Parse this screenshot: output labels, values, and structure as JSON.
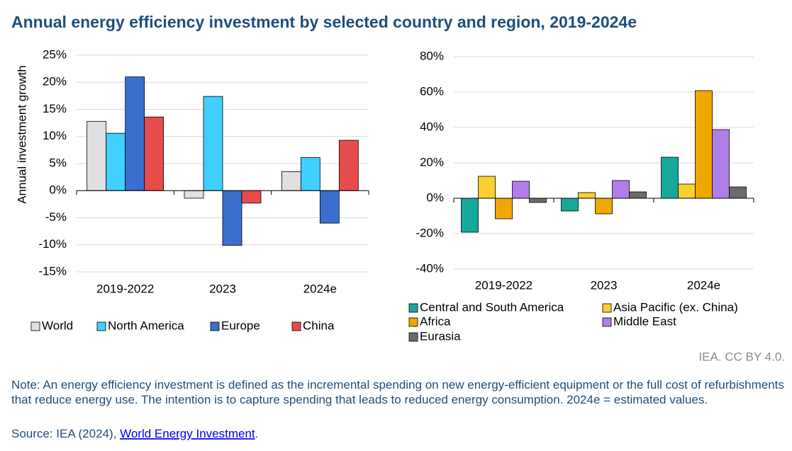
{
  "title": "Annual energy efficiency investment by selected country and region, 2019-2024e",
  "chart_data": [
    {
      "type": "bar",
      "y_label": "Annual investment growth",
      "categories": [
        "2019-2022",
        "2023",
        "2024e"
      ],
      "series": [
        {
          "name": "World",
          "color": "#e0e0e0",
          "values": [
            12.8,
            -1.4,
            3.5
          ]
        },
        {
          "name": "North America",
          "color": "#40d0ff",
          "values": [
            10.6,
            17.4,
            6.1
          ]
        },
        {
          "name": "Europe",
          "color": "#3a6fcf",
          "values": [
            21.0,
            -10.1,
            -6.0
          ]
        },
        {
          "name": "China",
          "color": "#e84b4b",
          "values": [
            13.6,
            -2.3,
            9.3
          ]
        }
      ],
      "ylim": [
        -15,
        25
      ],
      "yticks": [
        {
          "value": 25,
          "label": "25%"
        },
        {
          "value": 20,
          "label": "20%"
        },
        {
          "value": 15,
          "label": "15%"
        },
        {
          "value": 10,
          "label": "10%"
        },
        {
          "value": 5,
          "label": "5%"
        },
        {
          "value": 0,
          "label": "0%"
        },
        {
          "value": -5,
          "label": "-5%"
        },
        {
          "value": -10,
          "label": "-10%"
        },
        {
          "value": -15,
          "label": "-15%"
        }
      ],
      "grid": true
    },
    {
      "type": "bar",
      "categories": [
        "2019-2022",
        "2023",
        "2024e"
      ],
      "series": [
        {
          "name": "Central and South America",
          "color": "#17a89a",
          "values": [
            -19.2,
            -7.2,
            23.2
          ]
        },
        {
          "name": "Asia Pacific (ex. China)",
          "color": "#f9d030",
          "values": [
            12.4,
            3.2,
            8.0
          ]
        },
        {
          "name": "Africa",
          "color": "#f0a800",
          "values": [
            -11.6,
            -8.8,
            60.8
          ]
        },
        {
          "name": "Middle East",
          "color": "#b07ee8",
          "values": [
            9.6,
            10.0,
            38.8
          ]
        },
        {
          "name": "Eurasia",
          "color": "#6b6b6b",
          "values": [
            -2.4,
            3.6,
            6.4
          ]
        }
      ],
      "ylim": [
        -40,
        80
      ],
      "yticks": [
        {
          "value": 80,
          "label": "80%"
        },
        {
          "value": 60,
          "label": "60%"
        },
        {
          "value": 40,
          "label": "40%"
        },
        {
          "value": 20,
          "label": "20%"
        },
        {
          "value": 0,
          "label": "0%"
        },
        {
          "value": -20,
          "label": "-20%"
        },
        {
          "value": -40,
          "label": "-40%"
        }
      ],
      "grid": true
    }
  ],
  "credit": "IEA. CC BY 4.0.",
  "note": "Note: An energy efficiency investment is defined as the incremental spending on new energy-efficient equipment or the full cost of refurbishments that reduce energy use. The intention is to capture spending that leads to reduced energy consumption. 2024e = estimated values.",
  "source": {
    "prefix": "Source: IEA (2024), ",
    "link": "World Energy Investment",
    "suffix": "."
  }
}
